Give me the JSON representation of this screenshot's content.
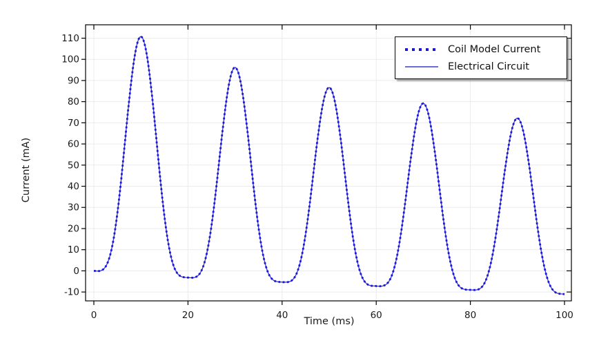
{
  "figure": {
    "background": "#ffffff",
    "text_color": "#1a1a1a",
    "grid_color": "#ebebeb",
    "border_color": "#000000"
  },
  "legend": {
    "items": [
      {
        "label": "Coil Model Current",
        "style": "dotted",
        "color": "#1a16dd"
      },
      {
        "label": "Electrical Circuit",
        "style": "solid",
        "color": "#3a3acc"
      }
    ]
  },
  "chart_data": {
    "type": "line",
    "title": "",
    "xlabel": "Time (ms)",
    "ylabel": "Current (mA)",
    "xlim": [
      -1.8,
      102.5
    ],
    "ylim": [
      -14.2,
      117.3
    ],
    "x_ticks": [
      0,
      20,
      40,
      60,
      80,
      100
    ],
    "y_ticks": [
      -10,
      0,
      10,
      20,
      30,
      40,
      50,
      60,
      70,
      80,
      90,
      100,
      110
    ],
    "grid": true,
    "legend_position": "top-right",
    "series": [
      {
        "name": "Coil Model Current",
        "line_style": "dotted",
        "color": "#1a16dd",
        "width": 2.8
      },
      {
        "name": "Electrical Circuit",
        "line_style": "solid",
        "color": "#3a3acc",
        "width": 1.3
      }
    ],
    "series_note": "Both series plot the same decaying-peak current waveform; curves coincide.",
    "peaks_t_ms": [
      10,
      30,
      50,
      70,
      90
    ],
    "peaks_mA": [
      110.8,
      96.2,
      86.7,
      79.2,
      72.2
    ],
    "minima_t_ms": [
      0,
      20,
      40,
      60,
      80,
      100
    ],
    "minima_mA": [
      0,
      -3.2,
      -5.3,
      -7.2,
      -9.0,
      -11.0
    ],
    "interpolation_power": 4,
    "samples_t_ms": [
      0,
      2.5,
      5,
      7.5,
      10,
      12.5,
      15,
      17.5,
      20,
      22.5,
      25,
      27.5,
      30,
      32.5,
      35,
      37.5,
      40,
      42.5,
      45,
      47.5,
      50,
      52.5,
      55,
      57.5,
      60,
      62.5,
      65,
      67.5,
      70,
      72.5,
      75,
      77.5,
      80,
      82.5,
      85,
      87.5,
      90,
      92.5,
      95,
      97.5,
      100
    ],
    "samples_mA": [
      0,
      2.0,
      27.3,
      80.7,
      110.8,
      79.9,
      25.7,
      -0.4,
      -3.2,
      -1.3,
      21.4,
      69.2,
      96.2,
      68.7,
      20.3,
      -2.9,
      -5.3,
      -3.5,
      17.5,
      61.7,
      86.7,
      61.2,
      16.5,
      -5.0,
      -7.2,
      -5.6,
      14.2,
      55.7,
      79.2,
      55.3,
      13.3,
      -6.9,
      -9.0,
      -7.5,
      11.1,
      50.1,
      72.2,
      49.6,
      10.1,
      -9.0,
      -11.0
    ]
  }
}
